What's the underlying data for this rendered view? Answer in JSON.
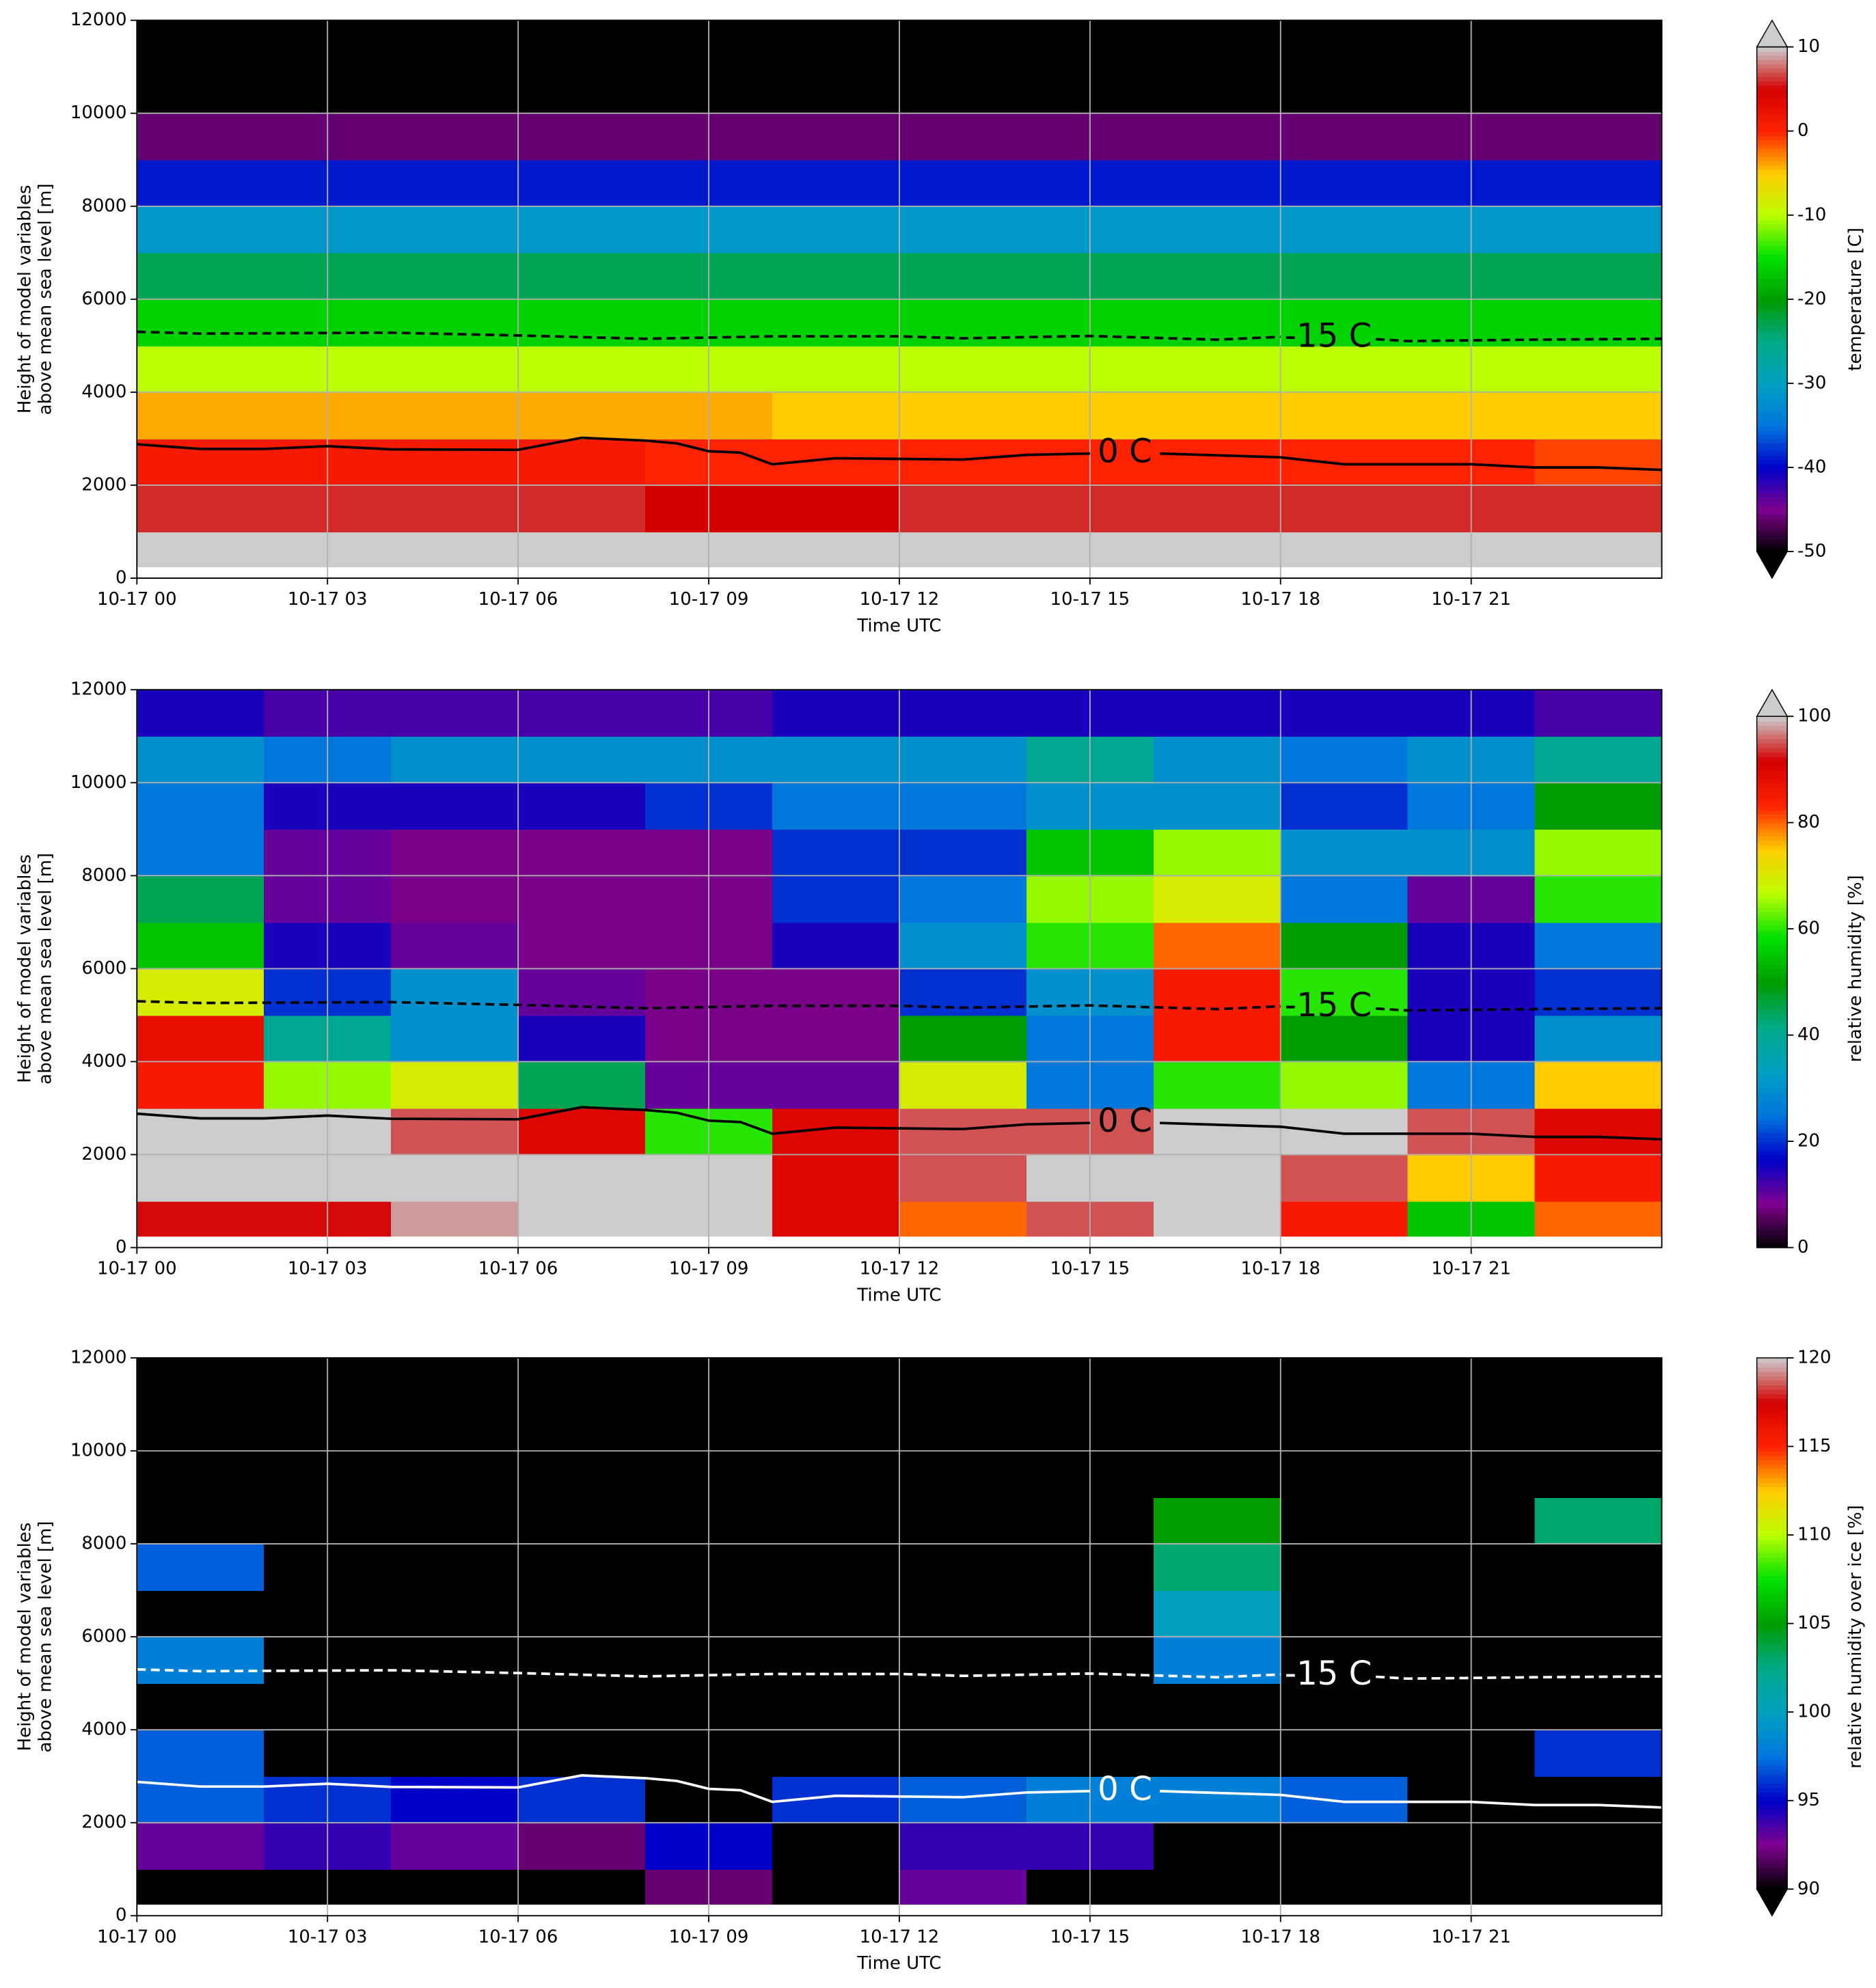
{
  "chart_data": [
    {
      "type": "heatmap",
      "xlabel": "Time UTC",
      "ylabel": [
        "Height of model variables",
        "above mean sea level [m]"
      ],
      "xlim": [
        0,
        24
      ],
      "xticks": [
        {
          "value": 0,
          "label": "10-17 00"
        },
        {
          "value": 3,
          "label": "10-17 03"
        },
        {
          "value": 6,
          "label": "10-17 06"
        },
        {
          "value": 9,
          "label": "10-17 09"
        },
        {
          "value": 12,
          "label": "10-17 12"
        },
        {
          "value": 15,
          "label": "10-17 15"
        },
        {
          "value": 18,
          "label": "10-17 18"
        },
        {
          "value": 21,
          "label": "10-17 21"
        }
      ],
      "ylim": [
        0,
        12000
      ],
      "yticks": [
        0,
        2000,
        4000,
        6000,
        8000,
        10000,
        12000
      ],
      "grid": true,
      "x_bins": [
        0,
        2,
        4,
        6,
        8,
        10,
        12,
        14,
        16,
        18,
        20,
        22,
        24
      ],
      "y_bins": [
        250,
        1000,
        2000,
        3000,
        4000,
        5000,
        6000,
        7000,
        8000,
        9000,
        10000,
        11000,
        12000
      ],
      "z": [
        [
          12,
          12,
          12,
          12,
          11,
          11,
          12,
          12,
          12,
          12,
          13,
          12
        ],
        [
          6,
          6,
          6,
          6,
          5,
          5,
          6,
          6,
          6,
          6,
          6,
          6
        ],
        [
          1,
          1,
          1,
          1,
          0,
          0,
          0,
          0,
          0,
          0,
          0,
          -1
        ],
        [
          -4,
          -4,
          -4,
          -4,
          -4,
          -5,
          -5,
          -5,
          -5,
          -5,
          -5,
          -5
        ],
        [
          -10,
          -10,
          -10,
          -10,
          -10,
          -10,
          -10,
          -10,
          -10,
          -10,
          -10,
          -10
        ],
        [
          -16,
          -16,
          -16,
          -16,
          -16,
          -16,
          -16,
          -16,
          -16,
          -16,
          -16,
          -16
        ],
        [
          -23,
          -23,
          -23,
          -23,
          -23,
          -23,
          -23,
          -23,
          -23,
          -23,
          -23,
          -23
        ],
        [
          -31,
          -31,
          -31,
          -31,
          -31,
          -31,
          -31,
          -31,
          -31,
          -31,
          -31,
          -31
        ],
        [
          -39,
          -39,
          -39,
          -39,
          -39,
          -39,
          -39,
          -39,
          -39,
          -39,
          -39,
          -39
        ],
        [
          -46,
          -46,
          -46,
          -46,
          -46,
          -46,
          -46,
          -46,
          -46,
          -46,
          -46,
          -46
        ],
        [
          -55,
          -55,
          -55,
          -55,
          -55,
          -55,
          -55,
          -55,
          -55,
          -55,
          -55,
          -55
        ],
        [
          -56,
          -56,
          -56,
          -56,
          -56,
          -56,
          -56,
          -56,
          -56,
          -56,
          -56,
          -56
        ]
      ],
      "cmap": [
        "#000000",
        "#7f008f",
        "#0000c8",
        "#0077dd",
        "#00a0c0",
        "#00aa88",
        "#009c00",
        "#00e000",
        "#bbff00",
        "#ffcc00",
        "#ff2200",
        "#d40000",
        "#cccccc"
      ],
      "clim": [
        -50,
        10
      ],
      "cticks": [
        -50,
        -40,
        -30,
        -20,
        -10,
        0,
        10
      ],
      "clabel": "temperature [C]",
      "extend": "both",
      "contours": [
        {
          "label": "0 C",
          "color": "#000000",
          "dashed": false,
          "x": [
            0,
            1,
            2,
            3,
            4,
            6,
            7,
            8,
            8.5,
            9,
            9.5,
            10,
            11,
            13,
            14,
            15,
            15.5,
            16.1,
            18,
            19,
            21,
            22,
            23,
            24
          ],
          "values": [
            2880,
            2780,
            2780,
            2840,
            2770,
            2760,
            3020,
            2960,
            2900,
            2730,
            2700,
            2450,
            2580,
            2550,
            2650,
            2680,
            null,
            2680,
            2600,
            2450,
            2450,
            2380,
            2380,
            2330
          ]
        },
        {
          "label": "-15 C",
          "color": "#000000",
          "dashed": true,
          "x": [
            0,
            1,
            4,
            6,
            8,
            10,
            12,
            13,
            15,
            17,
            18,
            18.8,
            19.5,
            20,
            22,
            24
          ],
          "values": [
            5300,
            5260,
            5280,
            5220,
            5150,
            5200,
            5200,
            5160,
            5210,
            5130,
            5190,
            null,
            5140,
            5100,
            5130,
            5150
          ]
        }
      ]
    },
    {
      "type": "heatmap",
      "xlabel": "Time UTC",
      "ylabel": [
        "Height of model variables",
        "above mean sea level [m]"
      ],
      "xlim": [
        0,
        24
      ],
      "xticks": [
        {
          "value": 0,
          "label": "10-17 00"
        },
        {
          "value": 3,
          "label": "10-17 03"
        },
        {
          "value": 6,
          "label": "10-17 06"
        },
        {
          "value": 9,
          "label": "10-17 09"
        },
        {
          "value": 12,
          "label": "10-17 12"
        },
        {
          "value": 15,
          "label": "10-17 15"
        },
        {
          "value": 18,
          "label": "10-17 18"
        },
        {
          "value": 21,
          "label": "10-17 21"
        }
      ],
      "ylim": [
        0,
        12000
      ],
      "yticks": [
        0,
        2000,
        4000,
        6000,
        8000,
        10000,
        12000
      ],
      "grid": true,
      "x_bins": [
        0,
        2,
        4,
        6,
        8,
        10,
        12,
        14,
        16,
        18,
        20,
        22,
        24
      ],
      "y_bins": [
        250,
        1000,
        2000,
        3000,
        4000,
        5000,
        6000,
        7000,
        8000,
        9000,
        10000,
        11000,
        12000
      ],
      "z": [
        [
          92,
          92,
          98,
          100,
          100,
          90,
          80,
          95,
          100,
          85,
          55,
          80
        ],
        [
          100,
          100,
          100,
          100,
          100,
          90,
          95,
          100,
          100,
          95,
          75,
          85
        ],
        [
          100,
          100,
          95,
          90,
          60,
          90,
          95,
          95,
          100,
          100,
          95,
          90
        ],
        [
          85,
          65,
          70,
          45,
          10,
          10,
          70,
          25,
          60,
          65,
          25,
          75
        ],
        [
          88,
          40,
          30,
          15,
          8,
          8,
          50,
          25,
          85,
          50,
          15,
          30
        ],
        [
          70,
          20,
          30,
          10,
          8,
          8,
          20,
          30,
          85,
          60,
          15,
          20
        ],
        [
          55,
          15,
          10,
          8,
          8,
          15,
          30,
          60,
          80,
          50,
          15,
          25
        ],
        [
          45,
          10,
          8,
          8,
          8,
          20,
          25,
          65,
          70,
          25,
          10,
          60
        ],
        [
          25,
          10,
          8,
          8,
          8,
          20,
          20,
          55,
          65,
          30,
          30,
          65
        ],
        [
          25,
          15,
          15,
          15,
          20,
          25,
          25,
          30,
          30,
          20,
          25,
          50
        ],
        [
          30,
          25,
          30,
          30,
          30,
          30,
          30,
          40,
          30,
          25,
          30,
          40
        ],
        [
          15,
          12,
          12,
          12,
          12,
          15,
          15,
          15,
          15,
          15,
          15,
          12
        ]
      ],
      "cmap": [
        "#000000",
        "#7f008f",
        "#0000c8",
        "#0077dd",
        "#00a0c0",
        "#00aa88",
        "#009c00",
        "#00e000",
        "#bbff00",
        "#ffcc00",
        "#ff2200",
        "#d40000",
        "#cccccc"
      ],
      "clim": [
        0,
        100
      ],
      "cticks": [
        0,
        20,
        40,
        60,
        80,
        100
      ],
      "clabel": "relative humidity [%]",
      "extend": "max",
      "contours": [
        {
          "label": "0 C",
          "color": "#000000",
          "dashed": false,
          "x": [
            0,
            1,
            2,
            3,
            4,
            6,
            7,
            8,
            8.5,
            9,
            9.5,
            10,
            11,
            13,
            14,
            15,
            15.5,
            16.1,
            18,
            19,
            21,
            22,
            23,
            24
          ],
          "values": [
            2880,
            2780,
            2780,
            2840,
            2770,
            2760,
            3020,
            2960,
            2900,
            2730,
            2700,
            2450,
            2580,
            2550,
            2650,
            2680,
            null,
            2680,
            2600,
            2450,
            2450,
            2380,
            2380,
            2330
          ]
        },
        {
          "label": "-15 C",
          "color": "#000000",
          "dashed": true,
          "x": [
            0,
            1,
            4,
            6,
            8,
            10,
            12,
            13,
            15,
            17,
            18,
            18.8,
            19.5,
            20,
            22,
            24
          ],
          "values": [
            5300,
            5260,
            5280,
            5220,
            5150,
            5200,
            5200,
            5160,
            5210,
            5130,
            5190,
            null,
            5140,
            5100,
            5130,
            5150
          ]
        }
      ]
    },
    {
      "type": "heatmap",
      "xlabel": "Time UTC",
      "ylabel": [
        "Height of model variables",
        "above mean sea level [m]"
      ],
      "xlim": [
        0,
        24
      ],
      "xticks": [
        {
          "value": 0,
          "label": "10-17 00"
        },
        {
          "value": 3,
          "label": "10-17 03"
        },
        {
          "value": 6,
          "label": "10-17 06"
        },
        {
          "value": 9,
          "label": "10-17 09"
        },
        {
          "value": 12,
          "label": "10-17 12"
        },
        {
          "value": 15,
          "label": "10-17 15"
        },
        {
          "value": 18,
          "label": "10-17 18"
        },
        {
          "value": 21,
          "label": "10-17 21"
        }
      ],
      "ylim": [
        0,
        12000
      ],
      "yticks": [
        0,
        2000,
        4000,
        6000,
        8000,
        10000,
        12000
      ],
      "grid": true,
      "x_bins": [
        0,
        2,
        4,
        6,
        8,
        10,
        12,
        14,
        16,
        18,
        20,
        22,
        24
      ],
      "y_bins": [
        250,
        1000,
        2000,
        3000,
        4000,
        5000,
        6000,
        7000,
        8000,
        9000,
        10000,
        11000,
        12000
      ],
      "z": [
        [
          80,
          80,
          80,
          80,
          92,
          80,
          93,
          80,
          80,
          80,
          80,
          80
        ],
        [
          93,
          94,
          93,
          92,
          95,
          80,
          94,
          94,
          80,
          80,
          80,
          80
        ],
        [
          97,
          96,
          95,
          96,
          80,
          96,
          97,
          98,
          98,
          97,
          80,
          80
        ],
        [
          97,
          80,
          80,
          80,
          80,
          80,
          80,
          80,
          80,
          80,
          80,
          96
        ],
        [
          80,
          80,
          80,
          80,
          80,
          80,
          80,
          80,
          80,
          80,
          80,
          80
        ],
        [
          98,
          80,
          80,
          80,
          80,
          80,
          80,
          80,
          98,
          80,
          80,
          80
        ],
        [
          80,
          80,
          80,
          80,
          80,
          80,
          80,
          80,
          100,
          80,
          80,
          80
        ],
        [
          97,
          80,
          80,
          80,
          80,
          80,
          80,
          80,
          103,
          80,
          80,
          80
        ],
        [
          80,
          80,
          80,
          80,
          80,
          80,
          80,
          80,
          105,
          80,
          80,
          103
        ],
        [
          80,
          80,
          80,
          80,
          80,
          80,
          80,
          80,
          80,
          80,
          80,
          80
        ],
        [
          80,
          80,
          80,
          80,
          80,
          80,
          80,
          80,
          80,
          80,
          80,
          80
        ],
        [
          80,
          80,
          80,
          80,
          80,
          80,
          80,
          80,
          80,
          80,
          80,
          80
        ]
      ],
      "cmap": [
        "#000000",
        "#7f008f",
        "#0000c8",
        "#0077dd",
        "#00a0c0",
        "#00aa88",
        "#009c00",
        "#00e000",
        "#bbff00",
        "#ffcc00",
        "#ff2200",
        "#d40000",
        "#cccccc"
      ],
      "clim": [
        90,
        120
      ],
      "cticks": [
        90,
        95,
        100,
        105,
        110,
        115,
        120
      ],
      "clabel": "relative humidity over ice [%]",
      "extend": "min",
      "contours": [
        {
          "label": "0 C",
          "color": "#ffffff",
          "dashed": false,
          "x": [
            0,
            1,
            2,
            3,
            4,
            6,
            7,
            8,
            8.5,
            9,
            9.5,
            10,
            11,
            13,
            14,
            15,
            15.5,
            16.1,
            18,
            19,
            21,
            22,
            23,
            24
          ],
          "values": [
            2880,
            2780,
            2780,
            2840,
            2770,
            2760,
            3020,
            2960,
            2900,
            2730,
            2700,
            2450,
            2580,
            2550,
            2650,
            2680,
            null,
            2680,
            2600,
            2450,
            2450,
            2380,
            2380,
            2330
          ]
        },
        {
          "label": "-15 C",
          "color": "#ffffff",
          "dashed": true,
          "x": [
            0,
            1,
            4,
            6,
            8,
            10,
            12,
            13,
            15,
            17,
            18,
            18.8,
            19.5,
            20,
            22,
            24
          ],
          "values": [
            5300,
            5260,
            5280,
            5220,
            5150,
            5200,
            5200,
            5160,
            5210,
            5130,
            5190,
            null,
            5140,
            5100,
            5130,
            5150
          ]
        }
      ]
    }
  ]
}
